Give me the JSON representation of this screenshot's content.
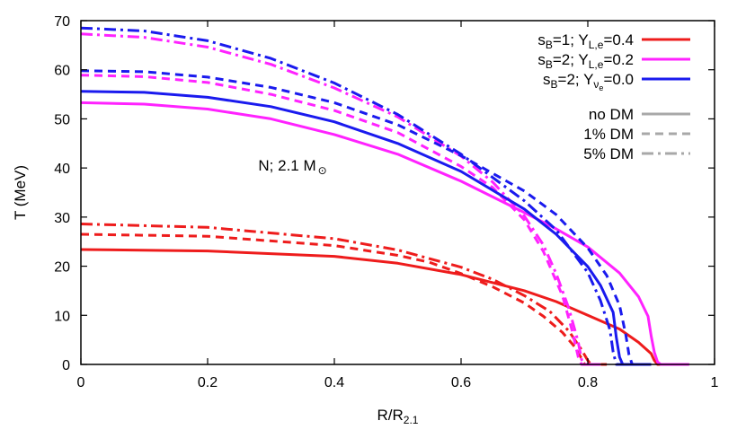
{
  "chart_data": {
    "type": "line",
    "xlabel": "R/R",
    "xlabel_sub": "2.1",
    "ylabel": "T (MeV)",
    "xlim": [
      0,
      1
    ],
    "ylim": [
      0,
      70
    ],
    "xticks": [
      "0",
      "0.2",
      "0.4",
      "0.6",
      "0.8",
      "1"
    ],
    "yticks": [
      "0",
      "10",
      "20",
      "30",
      "40",
      "50",
      "60",
      "70"
    ],
    "grid": false,
    "annotation": {
      "prefix": "N; 2.1 M",
      "sub": "⊙",
      "x": 0.28,
      "y": 39.5
    },
    "legend_placement": "top-right",
    "legend": {
      "models": [
        {
          "label_parts": [
            "s",
            "B",
            "=1; Y",
            "L,e",
            "=0.4"
          ],
          "color": "#ee1c1c"
        },
        {
          "label_parts": [
            "s",
            "B",
            "=2; Y",
            "L,e",
            "=0.2"
          ],
          "color": "#ff22ff"
        },
        {
          "label_parts": [
            "s",
            "B",
            "=2; Y",
            "ν",
            "e",
            "=0.0"
          ],
          "color": "#1a1aee"
        }
      ],
      "styles": [
        {
          "label": "no DM",
          "dash": "solid"
        },
        {
          "label": "1% DM",
          "dash": "dash"
        },
        {
          "label": "5% DM",
          "dash": "dashdot"
        }
      ],
      "style_color": "#a8a8a8"
    },
    "series": [
      {
        "model": 0,
        "style": "solid",
        "points": [
          [
            0,
            23.4
          ],
          [
            0.2,
            23.1
          ],
          [
            0.4,
            22.0
          ],
          [
            0.5,
            20.6
          ],
          [
            0.6,
            18.3
          ],
          [
            0.7,
            15.0
          ],
          [
            0.75,
            12.8
          ],
          [
            0.8,
            10.0
          ],
          [
            0.85,
            7.2
          ],
          [
            0.88,
            4.5
          ],
          [
            0.9,
            2.2
          ],
          [
            0.905,
            0.8
          ],
          [
            0.91,
            0
          ],
          [
            0.95,
            0
          ]
        ]
      },
      {
        "model": 0,
        "style": "dash",
        "points": [
          [
            0,
            26.5
          ],
          [
            0.2,
            26.1
          ],
          [
            0.4,
            24.2
          ],
          [
            0.5,
            22.2
          ],
          [
            0.55,
            20.8
          ],
          [
            0.6,
            18.5
          ],
          [
            0.65,
            15.8
          ],
          [
            0.7,
            12.5
          ],
          [
            0.73,
            9.8
          ],
          [
            0.76,
            6.5
          ],
          [
            0.78,
            3.5
          ],
          [
            0.79,
            1.2
          ],
          [
            0.795,
            0
          ],
          [
            0.82,
            0
          ]
        ]
      },
      {
        "model": 0,
        "style": "dashdot",
        "points": [
          [
            0,
            28.6
          ],
          [
            0.2,
            27.9
          ],
          [
            0.4,
            25.6
          ],
          [
            0.5,
            23.3
          ],
          [
            0.6,
            19.8
          ],
          [
            0.65,
            17.3
          ],
          [
            0.7,
            14.0
          ],
          [
            0.74,
            10.8
          ],
          [
            0.77,
            6.8
          ],
          [
            0.79,
            3.0
          ],
          [
            0.8,
            0.8
          ],
          [
            0.805,
            0
          ],
          [
            0.83,
            0
          ]
        ]
      },
      {
        "model": 1,
        "style": "solid",
        "points": [
          [
            0,
            53.3
          ],
          [
            0.1,
            53.0
          ],
          [
            0.2,
            52.0
          ],
          [
            0.3,
            50.0
          ],
          [
            0.4,
            46.8
          ],
          [
            0.5,
            42.8
          ],
          [
            0.6,
            37.3
          ],
          [
            0.7,
            30.9
          ],
          [
            0.75,
            27.6
          ],
          [
            0.8,
            23.9
          ],
          [
            0.85,
            18.6
          ],
          [
            0.88,
            13.8
          ],
          [
            0.895,
            9.8
          ],
          [
            0.9,
            5.8
          ],
          [
            0.905,
            2.5
          ],
          [
            0.91,
            0.5
          ],
          [
            0.915,
            0
          ],
          [
            0.96,
            0
          ]
        ]
      },
      {
        "model": 1,
        "style": "dash",
        "points": [
          [
            0,
            58.9
          ],
          [
            0.1,
            58.6
          ],
          [
            0.2,
            57.4
          ],
          [
            0.3,
            55.0
          ],
          [
            0.4,
            51.7
          ],
          [
            0.5,
            47.2
          ],
          [
            0.6,
            40.3
          ],
          [
            0.65,
            36.0
          ],
          [
            0.7,
            29.4
          ],
          [
            0.73,
            23.0
          ],
          [
            0.76,
            14.0
          ],
          [
            0.775,
            7.0
          ],
          [
            0.785,
            1.5
          ],
          [
            0.79,
            0
          ],
          [
            0.82,
            0
          ]
        ]
      },
      {
        "model": 1,
        "style": "dashdot",
        "points": [
          [
            0,
            67.3
          ],
          [
            0.1,
            66.6
          ],
          [
            0.2,
            64.6
          ],
          [
            0.3,
            61.1
          ],
          [
            0.4,
            56.3
          ],
          [
            0.5,
            50.4
          ],
          [
            0.6,
            42.4
          ],
          [
            0.65,
            37.1
          ],
          [
            0.7,
            30.2
          ],
          [
            0.73,
            24.3
          ],
          [
            0.75,
            18.5
          ],
          [
            0.77,
            11.4
          ],
          [
            0.785,
            4.5
          ],
          [
            0.79,
            1.0
          ],
          [
            0.795,
            0
          ],
          [
            0.82,
            0
          ]
        ]
      },
      {
        "model": 2,
        "style": "solid",
        "points": [
          [
            0,
            55.6
          ],
          [
            0.1,
            55.4
          ],
          [
            0.2,
            54.4
          ],
          [
            0.3,
            52.5
          ],
          [
            0.4,
            49.4
          ],
          [
            0.5,
            45.0
          ],
          [
            0.6,
            39.3
          ],
          [
            0.7,
            31.6
          ],
          [
            0.75,
            26.5
          ],
          [
            0.8,
            19.9
          ],
          [
            0.82,
            16.1
          ],
          [
            0.84,
            10.6
          ],
          [
            0.845,
            5.5
          ],
          [
            0.85,
            1.5
          ],
          [
            0.855,
            0
          ],
          [
            0.9,
            0
          ]
        ]
      },
      {
        "model": 2,
        "style": "dash",
        "points": [
          [
            0,
            59.8
          ],
          [
            0.1,
            59.6
          ],
          [
            0.2,
            58.5
          ],
          [
            0.3,
            56.4
          ],
          [
            0.4,
            53.3
          ],
          [
            0.5,
            48.8
          ],
          [
            0.6,
            42.5
          ],
          [
            0.7,
            35.3
          ],
          [
            0.75,
            30.5
          ],
          [
            0.8,
            23.7
          ],
          [
            0.83,
            18.1
          ],
          [
            0.85,
            12.0
          ],
          [
            0.86,
            6.0
          ],
          [
            0.865,
            2.0
          ],
          [
            0.87,
            0
          ],
          [
            0.9,
            0
          ]
        ]
      },
      {
        "model": 2,
        "style": "dashdot",
        "points": [
          [
            0,
            68.5
          ],
          [
            0.1,
            67.9
          ],
          [
            0.2,
            65.9
          ],
          [
            0.3,
            62.3
          ],
          [
            0.4,
            57.3
          ],
          [
            0.5,
            50.9
          ],
          [
            0.6,
            42.8
          ],
          [
            0.7,
            33.3
          ],
          [
            0.75,
            27.4
          ],
          [
            0.8,
            18.7
          ],
          [
            0.82,
            13.0
          ],
          [
            0.835,
            7.0
          ],
          [
            0.84,
            2.5
          ],
          [
            0.845,
            0
          ],
          [
            0.87,
            0
          ]
        ]
      }
    ]
  }
}
